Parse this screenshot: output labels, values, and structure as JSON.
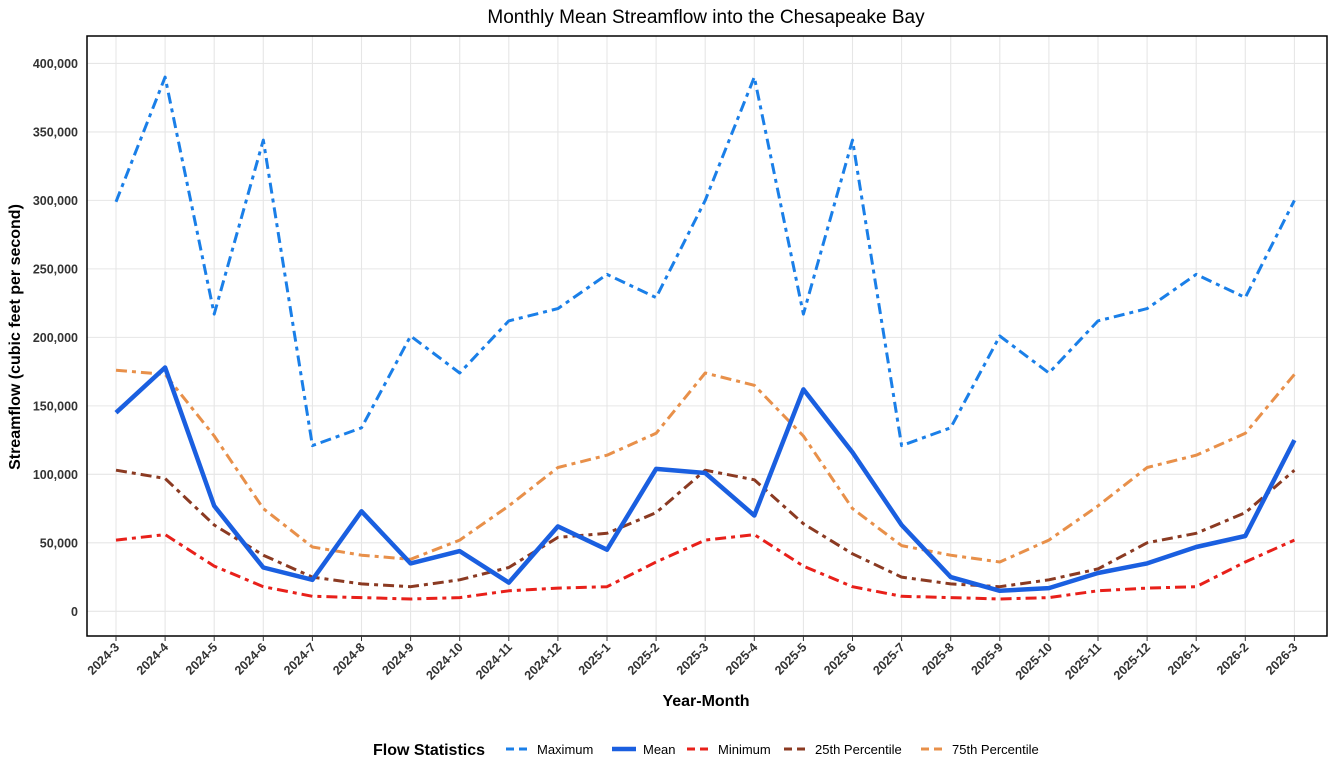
{
  "chart_data": {
    "type": "line",
    "title": "Monthly Mean Streamflow into the Chesapeake Bay",
    "xlabel": "Year-Month",
    "ylabel": "Streamflow (cubic feet per second)",
    "ylim": [
      -18000,
      420000
    ],
    "y_ticks": [
      0,
      50000,
      100000,
      150000,
      200000,
      250000,
      300000,
      350000,
      400000
    ],
    "y_tick_labels": [
      "0",
      "50,000",
      "100,000",
      "150,000",
      "200,000",
      "250,000",
      "300,000",
      "350,000",
      "400,000"
    ],
    "grid": true,
    "legend": {
      "title": "Flow Statistics",
      "position": "bottom"
    },
    "categories": [
      "2024-3",
      "2024-4",
      "2024-5",
      "2024-6",
      "2024-7",
      "2024-8",
      "2024-9",
      "2024-10",
      "2024-11",
      "2024-12",
      "2025-1",
      "2025-2",
      "2025-3",
      "2025-4",
      "2025-5",
      "2025-6",
      "2025-7",
      "2025-8",
      "2025-9",
      "2025-10",
      "2025-11",
      "2025-12",
      "2026-1",
      "2026-2",
      "2026-3"
    ],
    "series": [
      {
        "name": "Maximum",
        "color": "#1a7fe8",
        "style": "dash-dot",
        "values": [
          299000,
          390000,
          217000,
          344000,
          121000,
          134000,
          201000,
          174000,
          212000,
          221000,
          246000,
          229000,
          300000,
          390000,
          217000,
          344000,
          121000,
          134000,
          201000,
          174000,
          212000,
          221000,
          246000,
          229000,
          300000
        ]
      },
      {
        "name": "Mean",
        "color": "#1a5fe0",
        "style": "solid",
        "values": [
          145000,
          178000,
          77000,
          32000,
          23000,
          73000,
          35000,
          44000,
          21000,
          62000,
          45000,
          104000,
          101000,
          70000,
          162000,
          116000,
          63000,
          25000,
          15000,
          17000,
          28000,
          35000,
          47000,
          55000,
          125000
        ]
      },
      {
        "name": "Minimum",
        "color": "#e8201a",
        "style": "dash-dot",
        "values": [
          52000,
          56000,
          33000,
          18000,
          11000,
          10000,
          9000,
          10000,
          15000,
          17000,
          18000,
          36000,
          52000,
          56000,
          33000,
          18000,
          11000,
          10000,
          9000,
          10000,
          15000,
          17000,
          18000,
          36000,
          52000
        ]
      },
      {
        "name": "25th Percentile",
        "color": "#8b3a22",
        "style": "dash-dot",
        "values": [
          103000,
          97000,
          63000,
          41000,
          25000,
          20000,
          18000,
          23000,
          32000,
          54000,
          57000,
          72000,
          103000,
          96000,
          64000,
          42000,
          25000,
          20000,
          18000,
          23000,
          31000,
          50000,
          57000,
          72000,
          103000
        ]
      },
      {
        "name": "75th Percentile",
        "color": "#e8904a",
        "style": "dash-dot",
        "values": [
          176000,
          173000,
          128000,
          75000,
          47000,
          41000,
          38000,
          52000,
          77000,
          105000,
          114000,
          130000,
          174000,
          165000,
          128000,
          75000,
          48000,
          41000,
          36000,
          52000,
          77000,
          105000,
          114000,
          130000,
          173000
        ]
      }
    ]
  }
}
